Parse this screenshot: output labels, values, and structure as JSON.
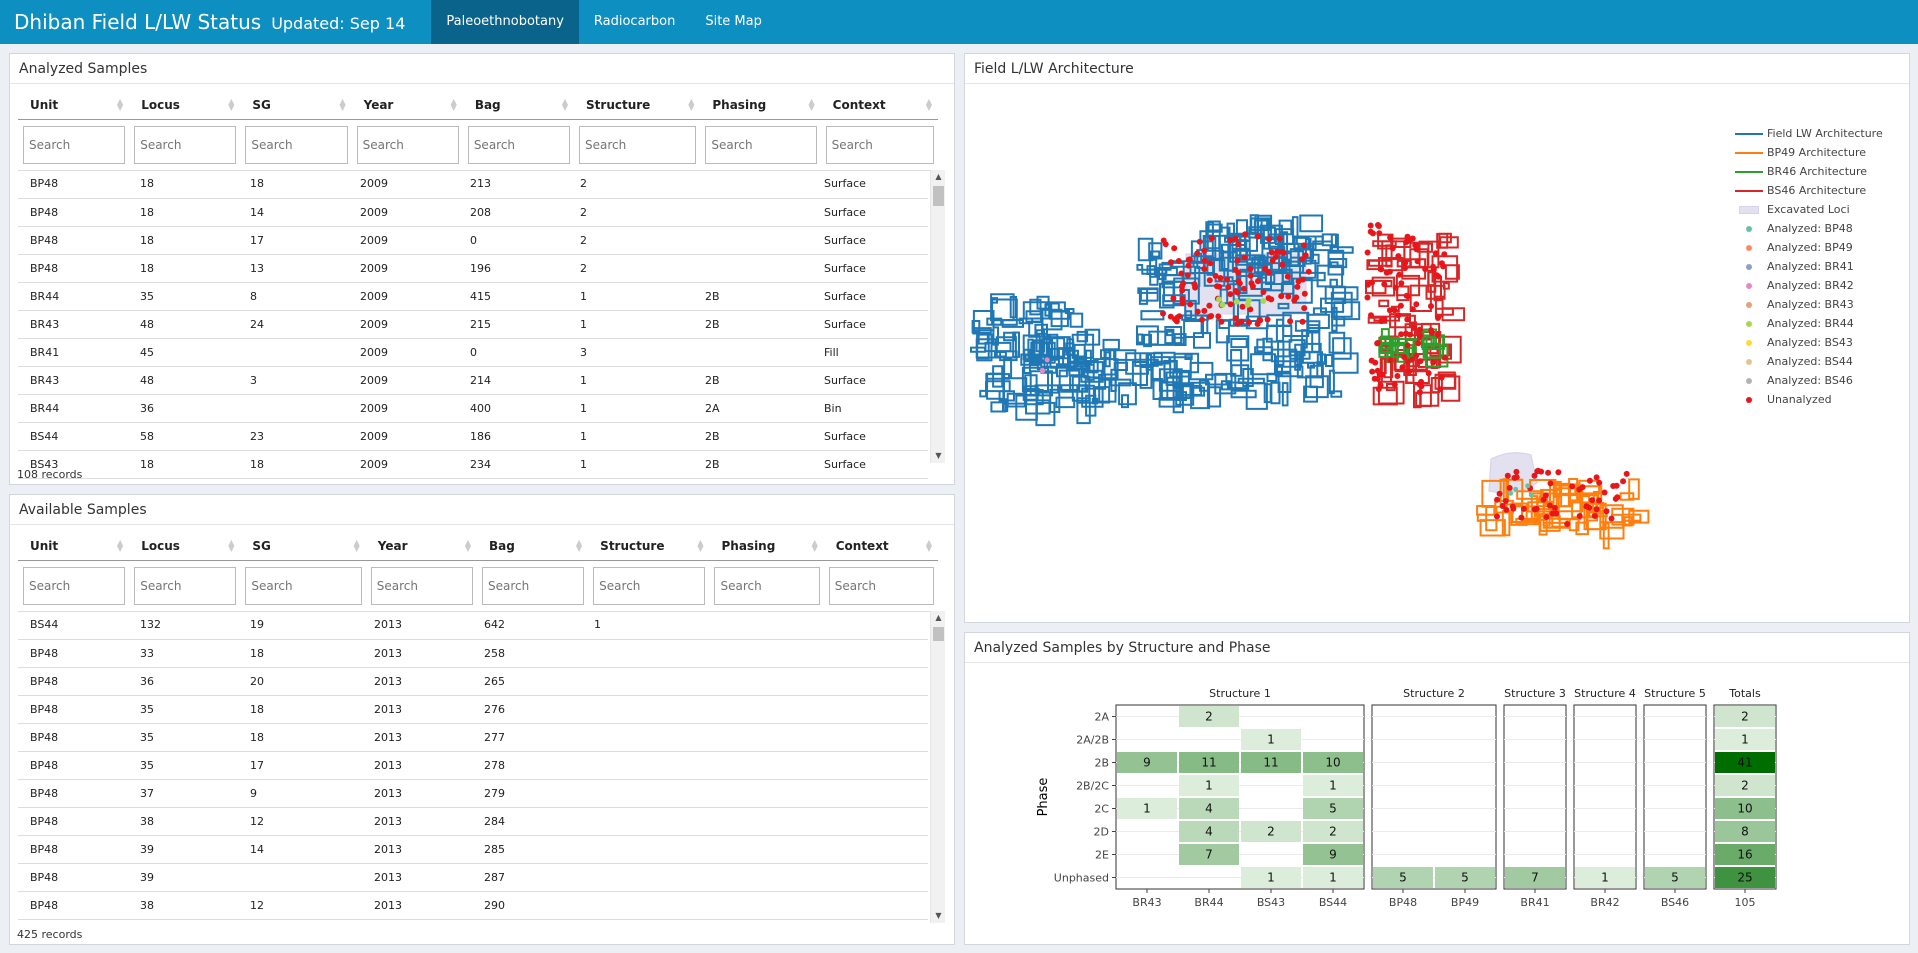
{
  "navbar": {
    "title": "Dhiban Field L/LW Status",
    "updated": "Updated: Sep 14",
    "tabs": [
      "Paleoethnobotany",
      "Radiocarbon",
      "Site Map"
    ]
  },
  "analyzed": {
    "title": "Analyzed Samples",
    "columns": [
      "Unit",
      "Locus",
      "SG",
      "Year",
      "Bag",
      "Structure",
      "Phasing",
      "Context"
    ],
    "placeholder": "Search",
    "rows": [
      [
        "BP48",
        "18",
        "18",
        "2009",
        "213",
        "2",
        "",
        "Surface"
      ],
      [
        "BP48",
        "18",
        "14",
        "2009",
        "208",
        "2",
        "",
        "Surface"
      ],
      [
        "BP48",
        "18",
        "17",
        "2009",
        "0",
        "2",
        "",
        "Surface"
      ],
      [
        "BP48",
        "18",
        "13",
        "2009",
        "196",
        "2",
        "",
        "Surface"
      ],
      [
        "BR44",
        "35",
        "8",
        "2009",
        "415",
        "1",
        "2B",
        "Surface"
      ],
      [
        "BR43",
        "48",
        "24",
        "2009",
        "215",
        "1",
        "2B",
        "Surface"
      ],
      [
        "BR41",
        "45",
        "",
        "2009",
        "0",
        "3",
        "",
        "Fill"
      ],
      [
        "BR43",
        "48",
        "3",
        "2009",
        "214",
        "1",
        "2B",
        "Surface"
      ],
      [
        "BR44",
        "36",
        "",
        "2009",
        "400",
        "1",
        "2A",
        "Bin"
      ],
      [
        "BS44",
        "58",
        "23",
        "2009",
        "186",
        "1",
        "2B",
        "Surface"
      ],
      [
        "BS43",
        "18",
        "18",
        "2009",
        "234",
        "1",
        "2B",
        "Surface"
      ]
    ],
    "records": "108 records"
  },
  "available": {
    "title": "Available Samples",
    "columns": [
      "Unit",
      "Locus",
      "SG",
      "Year",
      "Bag",
      "Structure",
      "Phasing",
      "Context"
    ],
    "placeholder": "Search",
    "rows": [
      [
        "BS44",
        "132",
        "19",
        "2013",
        "642",
        "1",
        "",
        ""
      ],
      [
        "BP48",
        "33",
        "18",
        "2013",
        "258",
        "",
        "",
        ""
      ],
      [
        "BP48",
        "36",
        "20",
        "2013",
        "265",
        "",
        "",
        ""
      ],
      [
        "BP48",
        "35",
        "18",
        "2013",
        "276",
        "",
        "",
        ""
      ],
      [
        "BP48",
        "35",
        "18",
        "2013",
        "277",
        "",
        "",
        ""
      ],
      [
        "BP48",
        "35",
        "17",
        "2013",
        "278",
        "",
        "",
        ""
      ],
      [
        "BP48",
        "37",
        "9",
        "2013",
        "279",
        "",
        "",
        ""
      ],
      [
        "BP48",
        "38",
        "12",
        "2013",
        "284",
        "",
        "",
        ""
      ],
      [
        "BP48",
        "39",
        "14",
        "2013",
        "285",
        "",
        "",
        ""
      ],
      [
        "BP48",
        "39",
        "",
        "2013",
        "287",
        "",
        "",
        ""
      ],
      [
        "BP48",
        "38",
        "12",
        "2013",
        "290",
        "",
        "",
        ""
      ]
    ],
    "records": "425 records"
  },
  "architecture": {
    "title": "Field L/LW Architecture",
    "legend": [
      {
        "label": "Field LW Architecture",
        "kind": "line",
        "color": "#1f77b4"
      },
      {
        "label": "BP49 Architecture",
        "kind": "line",
        "color": "#ff7f0e"
      },
      {
        "label": "BR46 Architecture",
        "kind": "line",
        "color": "#2ca02c"
      },
      {
        "label": "BS46 Architecture",
        "kind": "line",
        "color": "#d62728"
      },
      {
        "label": "Excavated Loci",
        "kind": "band",
        "color": "#e3e0ef"
      },
      {
        "label": "Analyzed: BP48",
        "kind": "dot",
        "color": "#66c2a5"
      },
      {
        "label": "Analyzed: BP49",
        "kind": "dot",
        "color": "#fc8d62"
      },
      {
        "label": "Analyzed: BR41",
        "kind": "dot",
        "color": "#8da0cb"
      },
      {
        "label": "Analyzed: BR42",
        "kind": "dot",
        "color": "#e78ac3"
      },
      {
        "label": "Analyzed: BR43",
        "kind": "dot",
        "color": "#e5a07c"
      },
      {
        "label": "Analyzed: BR44",
        "kind": "dot",
        "color": "#a6d854"
      },
      {
        "label": "Analyzed: BS43",
        "kind": "dot",
        "color": "#ffd92f"
      },
      {
        "label": "Analyzed: BS44",
        "kind": "dot",
        "color": "#e5c494"
      },
      {
        "label": "Analyzed: BS46",
        "kind": "dot",
        "color": "#b3b3b3"
      },
      {
        "label": "Unanalyzed",
        "kind": "dot",
        "color": "#e8161b"
      }
    ]
  },
  "heatmap": {
    "title": "Analyzed Samples by Structure and Phase"
  },
  "chart_data": {
    "type": "heatmap",
    "title": "Analyzed Samples by Structure and Phase",
    "ylabel": "Phase",
    "rows": [
      "2A",
      "2A/2B",
      "2B",
      "2B/2C",
      "2C",
      "2D",
      "2E",
      "Unphased"
    ],
    "facets": [
      {
        "name": "Structure 1",
        "columns": [
          "BR43",
          "BR44",
          "BS43",
          "BS44"
        ]
      },
      {
        "name": "Structure 2",
        "columns": [
          "BP48",
          "BP49"
        ]
      },
      {
        "name": "Structure 3",
        "columns": [
          "BR41"
        ]
      },
      {
        "name": "Structure 4",
        "columns": [
          "BR42"
        ]
      },
      {
        "name": "Structure 5",
        "columns": [
          "BS46"
        ]
      },
      {
        "name": "Totals",
        "columns": [
          "105"
        ]
      }
    ],
    "cells": [
      {
        "facet": 0,
        "col": 1,
        "row": 0,
        "value": 2
      },
      {
        "facet": 0,
        "col": 2,
        "row": 1,
        "value": 1
      },
      {
        "facet": 0,
        "col": 0,
        "row": 2,
        "value": 9
      },
      {
        "facet": 0,
        "col": 1,
        "row": 2,
        "value": 11
      },
      {
        "facet": 0,
        "col": 2,
        "row": 2,
        "value": 11
      },
      {
        "facet": 0,
        "col": 3,
        "row": 2,
        "value": 10
      },
      {
        "facet": 0,
        "col": 1,
        "row": 3,
        "value": 1
      },
      {
        "facet": 0,
        "col": 3,
        "row": 3,
        "value": 1
      },
      {
        "facet": 0,
        "col": 0,
        "row": 4,
        "value": 1
      },
      {
        "facet": 0,
        "col": 1,
        "row": 4,
        "value": 4
      },
      {
        "facet": 0,
        "col": 3,
        "row": 4,
        "value": 5
      },
      {
        "facet": 0,
        "col": 1,
        "row": 5,
        "value": 4
      },
      {
        "facet": 0,
        "col": 2,
        "row": 5,
        "value": 2
      },
      {
        "facet": 0,
        "col": 3,
        "row": 5,
        "value": 2
      },
      {
        "facet": 0,
        "col": 1,
        "row": 6,
        "value": 7
      },
      {
        "facet": 0,
        "col": 3,
        "row": 6,
        "value": 9
      },
      {
        "facet": 0,
        "col": 2,
        "row": 7,
        "value": 1
      },
      {
        "facet": 0,
        "col": 3,
        "row": 7,
        "value": 1
      },
      {
        "facet": 1,
        "col": 0,
        "row": 7,
        "value": 5
      },
      {
        "facet": 1,
        "col": 1,
        "row": 7,
        "value": 5
      },
      {
        "facet": 2,
        "col": 0,
        "row": 7,
        "value": 7
      },
      {
        "facet": 3,
        "col": 0,
        "row": 7,
        "value": 1
      },
      {
        "facet": 4,
        "col": 0,
        "row": 7,
        "value": 5
      },
      {
        "facet": 5,
        "col": 0,
        "row": 0,
        "value": 2
      },
      {
        "facet": 5,
        "col": 0,
        "row": 1,
        "value": 1
      },
      {
        "facet": 5,
        "col": 0,
        "row": 2,
        "value": 41
      },
      {
        "facet": 5,
        "col": 0,
        "row": 3,
        "value": 2
      },
      {
        "facet": 5,
        "col": 0,
        "row": 4,
        "value": 10
      },
      {
        "facet": 5,
        "col": 0,
        "row": 5,
        "value": 8
      },
      {
        "facet": 5,
        "col": 0,
        "row": 6,
        "value": 16
      },
      {
        "facet": 5,
        "col": 0,
        "row": 7,
        "value": 25
      }
    ],
    "color_low": "#f7fcf5",
    "color_high": "#006d00"
  }
}
